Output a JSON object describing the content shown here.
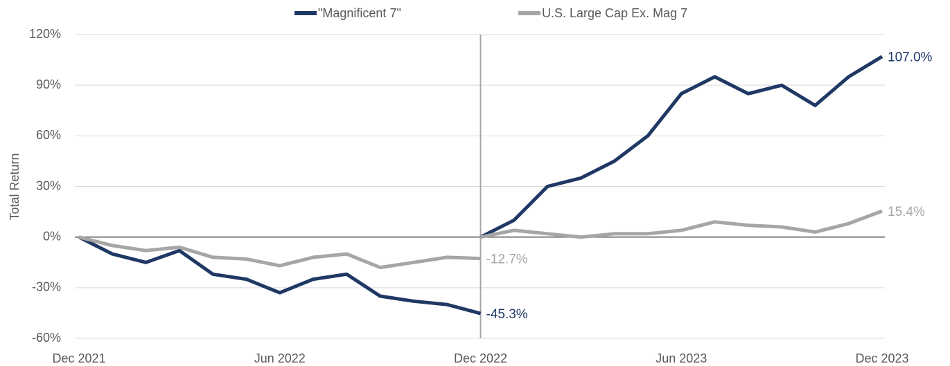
{
  "chart_data": {
    "type": "line",
    "y_label": "Total Return",
    "x": [
      "2021-12",
      "2022-01",
      "2022-02",
      "2022-03",
      "2022-04",
      "2022-05",
      "2022-06",
      "2022-07",
      "2022-08",
      "2022-09",
      "2022-10",
      "2022-11",
      "2022-12",
      "2022-12",
      "2022-12",
      "2023-01",
      "2023-02",
      "2023-03",
      "2023-04",
      "2023-05",
      "2023-06",
      "2023-07",
      "2023-08",
      "2023-09",
      "2023-10",
      "2023-11",
      "2023-12"
    ],
    "xlim": [
      "2021-12",
      "2023-12"
    ],
    "xticks": [
      {
        "value": "2021-12",
        "label": "Dec 2021"
      },
      {
        "value": "2022-06",
        "label": "Jun 2022"
      },
      {
        "value": "2022-12",
        "label": "Dec 2022"
      },
      {
        "value": "2023-06",
        "label": "Jun 2023"
      },
      {
        "value": "2023-12",
        "label": "Dec 2023"
      }
    ],
    "ylim": [
      -60,
      120
    ],
    "yticks": [
      {
        "value": -60,
        "label": "-60%"
      },
      {
        "value": -30,
        "label": "-30%"
      },
      {
        "value": 0,
        "label": "0%"
      },
      {
        "value": 30,
        "label": "30%"
      },
      {
        "value": 60,
        "label": "60%"
      },
      {
        "value": 90,
        "label": "90%"
      },
      {
        "value": 120,
        "label": "120%"
      }
    ],
    "grid": true,
    "vline_x": "2022-12",
    "legend": "top",
    "series": [
      {
        "name": "\"Magnificent 7\"",
        "color": "#1f3864",
        "values": [
          0,
          -10,
          -15,
          -8,
          -22,
          -25,
          -33,
          -25,
          -22,
          -35,
          -38,
          -40,
          -45.3,
          null,
          0,
          10,
          30,
          35,
          45,
          60,
          85,
          95,
          85,
          90,
          78,
          95,
          107.0
        ],
        "value_labels": [
          null,
          null,
          null,
          null,
          null,
          null,
          null,
          null,
          null,
          null,
          null,
          null,
          "-45.3%",
          null,
          null,
          null,
          null,
          null,
          null,
          null,
          null,
          null,
          null,
          null,
          null,
          null,
          "107.0%"
        ]
      },
      {
        "name": "U.S. Large Cap Ex. Mag 7",
        "color": "#a6a6a6",
        "values": [
          0,
          -5,
          -8,
          -6,
          -12,
          -13,
          -17,
          -12,
          -10,
          -18,
          -15,
          -12,
          -12.7,
          null,
          0,
          4,
          2,
          0,
          2,
          2,
          4,
          9,
          7,
          6,
          3,
          8,
          15.4
        ],
        "value_labels": [
          null,
          null,
          null,
          null,
          null,
          null,
          null,
          null,
          null,
          null,
          null,
          null,
          "-12.7%",
          null,
          null,
          null,
          null,
          null,
          null,
          null,
          null,
          null,
          null,
          null,
          null,
          null,
          "15.4%"
        ]
      }
    ]
  }
}
